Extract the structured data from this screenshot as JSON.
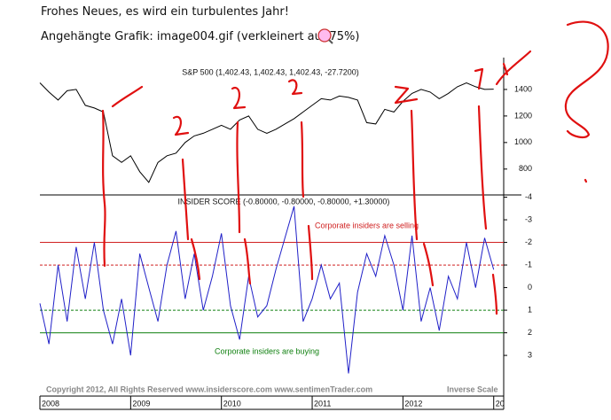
{
  "post": {
    "title": "Frohes Neues, es wird ein turbulentes Jahr!",
    "attachment": "Angehängte Grafik: image004.gif (verkleinert auf 75%)"
  },
  "chart_data": [
    {
      "type": "line",
      "title": "S&P 500 (1,402.43, 1,402.43, 1,402.43, -27.7200)",
      "x": [
        2008.0,
        2008.1,
        2008.2,
        2008.3,
        2008.4,
        2008.5,
        2008.6,
        2008.7,
        2008.8,
        2008.9,
        2009.0,
        2009.1,
        2009.2,
        2009.3,
        2009.4,
        2009.5,
        2009.6,
        2009.7,
        2009.8,
        2009.9,
        2010.0,
        2010.1,
        2010.2,
        2010.3,
        2010.4,
        2010.5,
        2010.6,
        2010.7,
        2010.8,
        2010.9,
        2011.0,
        2011.1,
        2011.2,
        2011.3,
        2011.4,
        2011.5,
        2011.6,
        2011.7,
        2011.8,
        2011.9,
        2012.0,
        2012.1,
        2012.2,
        2012.3,
        2012.4,
        2012.5,
        2012.6,
        2012.7,
        2012.8,
        2012.9,
        2013.0
      ],
      "series": [
        {
          "name": "S&P 500",
          "color": "#000000",
          "values": [
            1450,
            1380,
            1320,
            1390,
            1400,
            1280,
            1260,
            1230,
            900,
            850,
            900,
            780,
            700,
            850,
            900,
            920,
            1000,
            1050,
            1070,
            1100,
            1130,
            1100,
            1170,
            1200,
            1100,
            1070,
            1100,
            1140,
            1180,
            1230,
            1280,
            1330,
            1320,
            1350,
            1340,
            1320,
            1150,
            1140,
            1250,
            1230,
            1310,
            1370,
            1400,
            1380,
            1330,
            1370,
            1420,
            1450,
            1420,
            1400,
            1402.43
          ]
        }
      ],
      "xlim": [
        2008,
        2013.11
      ],
      "ylim": [
        605,
        1640
      ],
      "yticks": [
        800,
        1000,
        1200,
        1400
      ]
    },
    {
      "type": "line",
      "title": "INSIDER SCORE (-0.80000, -0.80000, -0.80000, +1.30000)",
      "x": [
        2008.0,
        2008.1,
        2008.2,
        2008.3,
        2008.4,
        2008.5,
        2008.6,
        2008.7,
        2008.8,
        2008.9,
        2009.0,
        2009.1,
        2009.2,
        2009.3,
        2009.4,
        2009.5,
        2009.6,
        2009.7,
        2009.8,
        2009.9,
        2010.0,
        2010.1,
        2010.2,
        2010.3,
        2010.4,
        2010.5,
        2010.6,
        2010.7,
        2010.8,
        2010.9,
        2011.0,
        2011.1,
        2011.2,
        2011.3,
        2011.4,
        2011.5,
        2011.6,
        2011.7,
        2011.8,
        2011.9,
        2012.0,
        2012.1,
        2012.2,
        2012.3,
        2012.4,
        2012.5,
        2012.6,
        2012.7,
        2012.8,
        2012.9,
        2013.0
      ],
      "series": [
        {
          "name": "Insider Score",
          "color": "#2020c8",
          "values": [
            0.7,
            2.5,
            -1,
            1.5,
            -1.8,
            0.5,
            -2,
            1,
            2.5,
            0.5,
            3,
            -1.5,
            0,
            1.5,
            -1,
            -2.5,
            0.5,
            -1.5,
            1,
            -0.5,
            -2.4,
            0.8,
            2.3,
            -0.5,
            1.3,
            0.8,
            -0.8,
            -2.2,
            -3.6,
            1.5,
            0.5,
            -1,
            0.5,
            -0.2,
            3.8,
            0.2,
            -1.5,
            -0.5,
            -2.3,
            -1,
            1,
            -2.3,
            1.5,
            0,
            1.9,
            -0.5,
            0.5,
            -2,
            0,
            -2.2,
            -0.8
          ]
        }
      ],
      "xlim": [
        2008,
        2013.11
      ],
      "ylim": [
        4.8,
        -4.1
      ],
      "yticks": [
        -4,
        -3,
        -2,
        -1,
        0,
        1,
        2,
        3
      ],
      "xticks": [
        2008,
        2009,
        2010,
        2011,
        2012,
        {
          "value": 2013,
          "label": "20"
        }
      ],
      "reference_lines": [
        {
          "value": -2,
          "color": "#d02020",
          "dashed": false
        },
        {
          "value": -1,
          "color": "#d02020",
          "dashed": true
        },
        {
          "value": 1,
          "color": "#108010",
          "dashed": true
        },
        {
          "value": 2,
          "color": "#108010",
          "dashed": false
        }
      ],
      "annotations": [
        "Corporate insiders are selling",
        "Corporate insiders are buying"
      ],
      "copyright": "Copyright 2012, All Rights Reserved  www.insiderscore.com  www.sentimenTrader.com",
      "scale_note": "Inverse Scale"
    }
  ]
}
